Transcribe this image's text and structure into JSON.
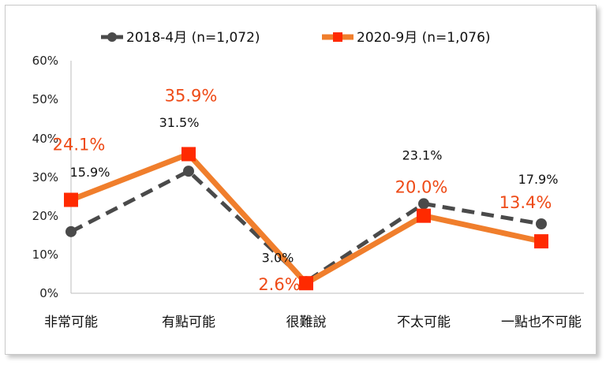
{
  "chart_data": {
    "type": "line",
    "categories": [
      "非常可能",
      "有點可能",
      "很難說",
      "不太可能",
      "一點也不可能"
    ],
    "ylim": [
      0,
      60
    ],
    "yticks": [
      "0%",
      "10%",
      "20%",
      "30%",
      "40%",
      "50%",
      "60%"
    ],
    "legend_position": "top",
    "grid": false,
    "series": [
      {
        "name": "2018-4月 (n=1,072)",
        "values": [
          15.9,
          31.5,
          3.0,
          23.1,
          17.9
        ],
        "labels": [
          "15.9%",
          "31.5%",
          "3.0%",
          "23.1%",
          "17.9%"
        ],
        "color": "#4a4a4a",
        "style": "dashed",
        "marker": "circle"
      },
      {
        "name": "2020-9月 (n=1,076)",
        "values": [
          24.1,
          35.9,
          2.6,
          20.0,
          13.4
        ],
        "labels": [
          "24.1%",
          "35.9%",
          "2.6%",
          "20.0%",
          "13.4%"
        ],
        "color": "#f07e2c",
        "marker_color": "#ff2a00",
        "style": "solid",
        "marker": "square"
      }
    ]
  }
}
